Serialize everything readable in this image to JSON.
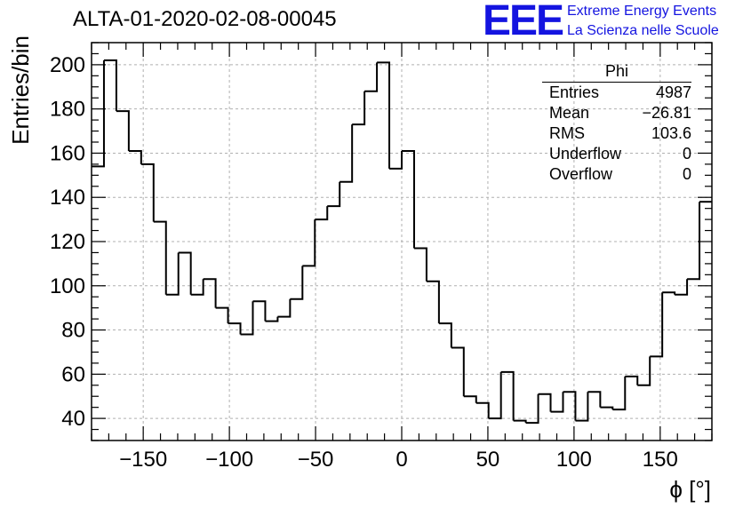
{
  "chart_data": {
    "type": "histogram",
    "title": "ALTA-01-2020-02-08-00045",
    "xlabel": "ϕ [°]",
    "ylabel": "Entries/bin",
    "xlim": [
      -180,
      180
    ],
    "ylim": [
      30,
      210
    ],
    "grid": true,
    "bin_width": 7.2,
    "bin_edges_start": -180,
    "x_ticks": [
      -150,
      -100,
      -50,
      0,
      50,
      100,
      150
    ],
    "x_tick_labels": [
      "−150",
      "−100",
      "−50",
      "0",
      "50",
      "100",
      "150"
    ],
    "y_ticks": [
      40,
      60,
      80,
      100,
      120,
      140,
      160,
      180,
      200
    ],
    "y_tick_labels": [
      "40",
      "60",
      "80",
      "100",
      "120",
      "140",
      "160",
      "180",
      "200"
    ],
    "values": [
      154,
      202,
      179,
      161,
      155,
      129,
      96,
      115,
      96,
      103,
      90,
      83,
      78,
      93,
      84,
      86,
      94,
      109,
      130,
      136,
      147,
      173,
      188,
      201,
      153,
      161,
      117,
      102,
      83,
      72,
      50,
      47,
      40,
      61,
      39,
      38,
      51,
      43,
      52,
      39,
      52,
      45,
      44,
      59,
      55,
      68,
      97,
      96,
      103,
      138
    ]
  },
  "logo": {
    "text": "EEE",
    "line1": "Extreme Energy Events",
    "line2": "La Scienza nelle Scuole",
    "color": "#1414e0"
  },
  "stats_box": {
    "title": "Phi",
    "rows": [
      {
        "label": "Entries",
        "value": "4987"
      },
      {
        "label": "Mean",
        "value": "−26.81"
      },
      {
        "label": "RMS",
        "value": "103.6"
      },
      {
        "label": "Underflow",
        "value": "0"
      },
      {
        "label": "Overflow",
        "value": "0"
      }
    ]
  }
}
